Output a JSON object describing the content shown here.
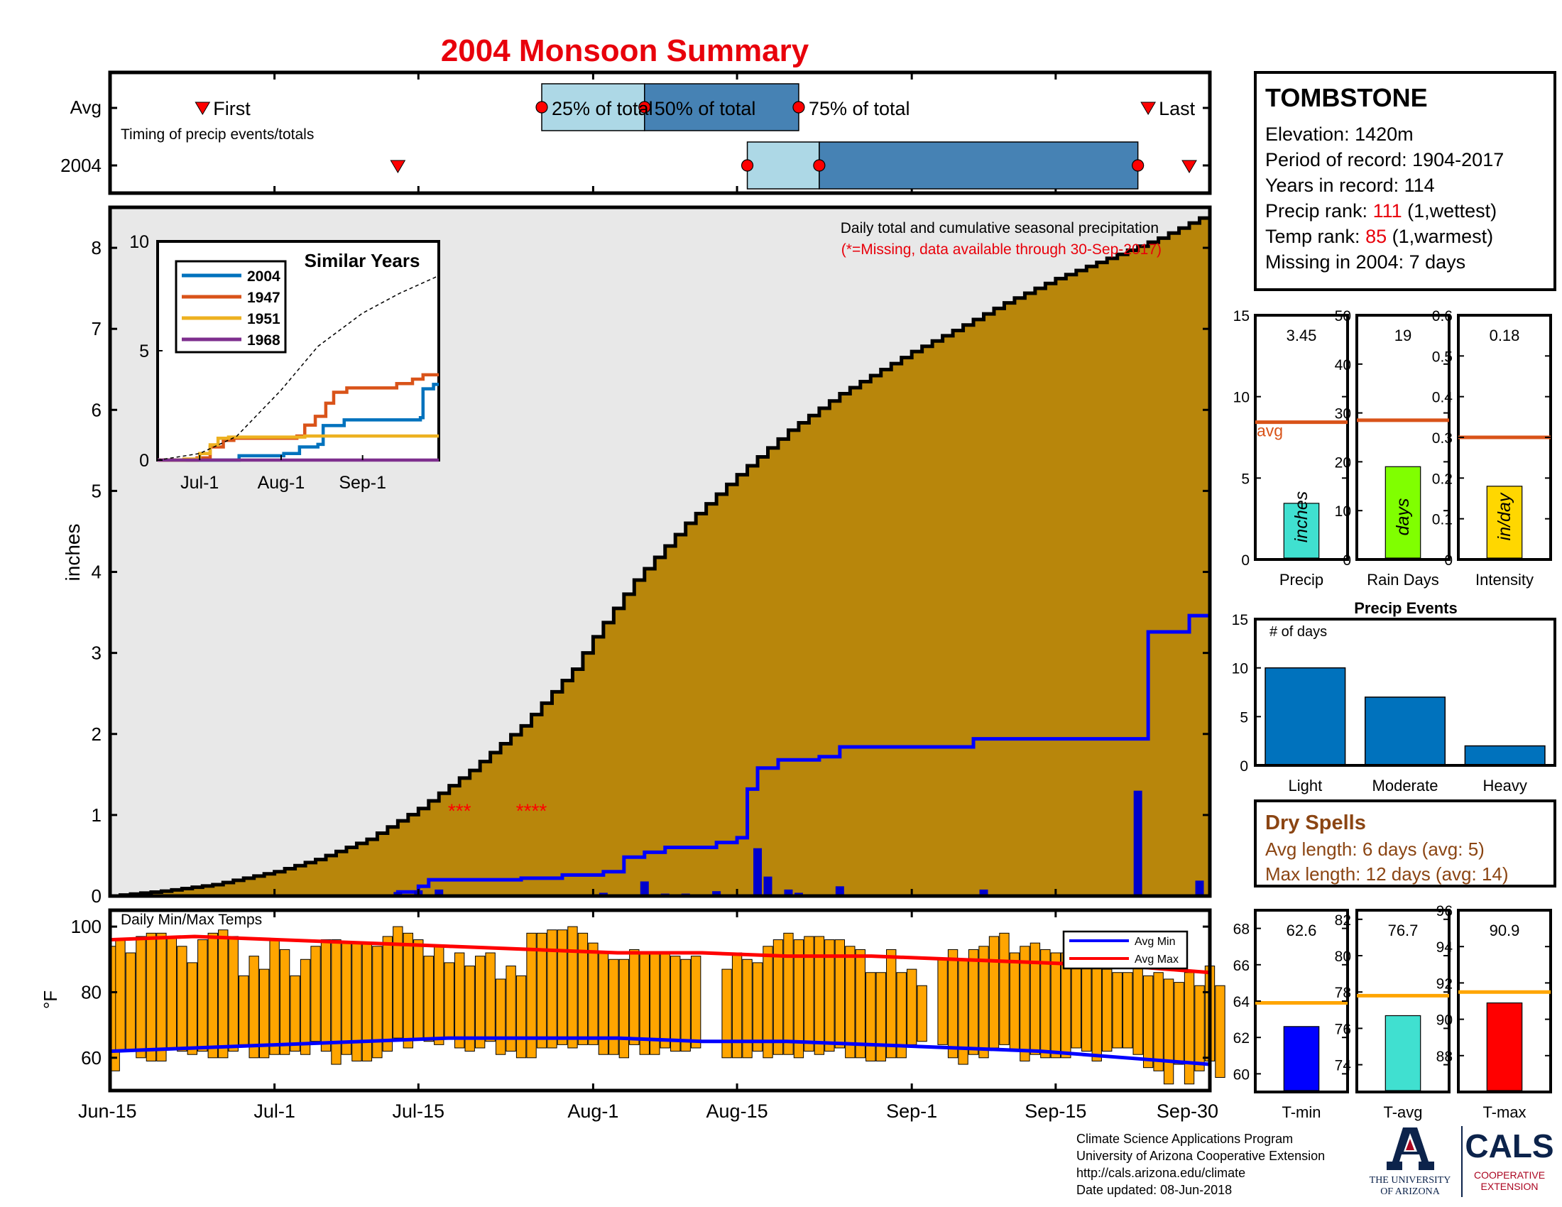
{
  "title": "2004 Monsoon Summary",
  "colors": {
    "title": "#e8000b",
    "cum_fill": "#b8860b",
    "rain_fill": "#e8e8e8",
    "rain_line": "#0000ff",
    "daily_bar": "#0000cc",
    "temp_bar": "#ffa500",
    "avg_min": "#0000ff",
    "avg_max": "#ff0000",
    "q_light": "#add8e6",
    "q_dark": "#4682b4",
    "marker": "#ff0000",
    "avg_line": "#d95319",
    "temp_avg_line": "#ffa500",
    "red_text": "#e8000b",
    "brown_text": "#8b4513",
    "events_bar": "#0072bd"
  },
  "timing": {
    "avg_label": "Avg",
    "year_label": "2004",
    "subtitle": "Timing of precip events/totals",
    "first_label": "First",
    "last_label": "Last",
    "q25_label": "25% of total",
    "q50_label": "50% of total",
    "q75_label": "75% of total",
    "avg": {
      "first": "2004-06-24",
      "q25": "2004-07-27",
      "q50": "2004-08-06",
      "q75": "2004-08-21",
      "last": "2004-09-24"
    },
    "y2004": {
      "first": "2004-07-13",
      "q25": "2004-08-16",
      "q50": "2004-08-23",
      "q75": "2004-09-23",
      "last": "2004-09-28"
    }
  },
  "station": {
    "name": "TOMBSTONE",
    "elevation": "Elevation: 1420m",
    "period": "Period of record: 1904-2017",
    "years": "Years in record: 114",
    "precip_rank_pre": "Precip rank: ",
    "precip_rank_val": "111",
    "precip_rank_post": " (1,wettest)",
    "temp_rank_pre": "Temp rank: ",
    "temp_rank_val": "85",
    "temp_rank_post": " (1,warmest)",
    "missing": "Missing in 2004: 7 days"
  },
  "main": {
    "ylabel": "inches",
    "note_line1": "Daily total and cumulative seasonal precipitation",
    "note_line2": "(*=Missing, data available through 30-Sep-2017)",
    "x_ticks": [
      "Jun-15",
      "Jul-1",
      "Jul-15",
      "Aug-1",
      "Aug-15",
      "Sep-1",
      "Sep-15",
      "Sep-30"
    ],
    "y_ticks": [
      "0",
      "1",
      "2",
      "3",
      "4",
      "5",
      "6",
      "7",
      "8"
    ],
    "missing_marks": [
      {
        "text": "***",
        "date": "2004-07-19"
      },
      {
        "text": "****",
        "date": "2004-07-26"
      }
    ]
  },
  "chart_data": [
    {
      "type": "area",
      "name": "Cumulative seasonal precipitation",
      "x_start": "Jun-15",
      "x_end": "Sep-30",
      "ylim": [
        0,
        8.5
      ],
      "ylabel": "inches",
      "series": [
        {
          "name": "Average cumulative",
          "points": [
            [
              "2004-06-15",
              0
            ],
            [
              "2004-06-20",
              0.06
            ],
            [
              "2004-06-25",
              0.14
            ],
            [
              "2004-07-01",
              0.3
            ],
            [
              "2004-07-05",
              0.45
            ],
            [
              "2004-07-10",
              0.7
            ],
            [
              "2004-07-15",
              1.08
            ],
            [
              "2004-07-20",
              1.55
            ],
            [
              "2004-07-25",
              2.1
            ],
            [
              "2004-07-30",
              2.8
            ],
            [
              "2004-08-01",
              3.2
            ],
            [
              "2004-08-05",
              3.9
            ],
            [
              "2004-08-10",
              4.6
            ],
            [
              "2004-08-15",
              5.2
            ],
            [
              "2004-08-20",
              5.75
            ],
            [
              "2004-08-25",
              6.2
            ],
            [
              "2004-09-01",
              6.72
            ],
            [
              "2004-09-05",
              6.98
            ],
            [
              "2004-09-10",
              7.32
            ],
            [
              "2004-09-15",
              7.62
            ],
            [
              "2004-09-20",
              7.87
            ],
            [
              "2004-09-25",
              8.12
            ],
            [
              "2004-09-30",
              8.43
            ]
          ]
        },
        {
          "name": "2004 cumulative",
          "points": [
            [
              "2004-06-15",
              0
            ],
            [
              "2004-07-12",
              0
            ],
            [
              "2004-07-13",
              0.05
            ],
            [
              "2004-07-15",
              0.12
            ],
            [
              "2004-07-16",
              0.2
            ],
            [
              "2004-07-25",
              0.22
            ],
            [
              "2004-07-29",
              0.26
            ],
            [
              "2004-08-02",
              0.3
            ],
            [
              "2004-08-04",
              0.48
            ],
            [
              "2004-08-06",
              0.54
            ],
            [
              "2004-08-08",
              0.6
            ],
            [
              "2004-08-13",
              0.66
            ],
            [
              "2004-08-15",
              0.72
            ],
            [
              "2004-08-16",
              1.32
            ],
            [
              "2004-08-17",
              1.58
            ],
            [
              "2004-08-19",
              1.68
            ],
            [
              "2004-08-23",
              1.72
            ],
            [
              "2004-08-25",
              1.84
            ],
            [
              "2004-09-07",
              1.94
            ],
            [
              "2004-09-23",
              1.94
            ],
            [
              "2004-09-24",
              3.26
            ],
            [
              "2004-09-28",
              3.46
            ],
            [
              "2004-09-30",
              3.46
            ]
          ]
        }
      ]
    },
    {
      "type": "bar",
      "name": "Daily precipitation 2004",
      "unit": "inches",
      "values": [
        [
          "2004-07-13",
          0.05
        ],
        [
          "2004-07-15",
          0.07
        ],
        [
          "2004-07-17",
          0.08
        ],
        [
          "2004-08-02",
          0.04
        ],
        [
          "2004-08-06",
          0.18
        ],
        [
          "2004-08-08",
          0.03
        ],
        [
          "2004-08-10",
          0.03
        ],
        [
          "2004-08-13",
          0.06
        ],
        [
          "2004-08-17",
          0.59
        ],
        [
          "2004-08-18",
          0.24
        ],
        [
          "2004-08-20",
          0.08
        ],
        [
          "2004-08-21",
          0.04
        ],
        [
          "2004-08-25",
          0.12
        ],
        [
          "2004-09-08",
          0.08
        ],
        [
          "2004-09-23",
          1.3
        ],
        [
          "2004-09-29",
          0.19
        ]
      ]
    },
    {
      "type": "line",
      "name": "Similar Years",
      "x_ticks": [
        "Jul-1",
        "Aug-1",
        "Sep-1"
      ],
      "y_ticks": [
        "0",
        "5",
        "10"
      ],
      "ylim": [
        0,
        10
      ],
      "legend_position": "top-left",
      "series": [
        {
          "name": "2004",
          "color": "#0072bd",
          "points": [
            [
              "2004-06-15",
              0
            ],
            [
              "2004-07-12",
              0
            ],
            [
              "2004-07-16",
              0.2
            ],
            [
              "2004-08-02",
              0.3
            ],
            [
              "2004-08-08",
              0.6
            ],
            [
              "2004-08-15",
              0.72
            ],
            [
              "2004-08-17",
              1.58
            ],
            [
              "2004-08-25",
              1.84
            ],
            [
              "2004-09-23",
              1.94
            ],
            [
              "2004-09-24",
              3.26
            ],
            [
              "2004-09-28",
              3.46
            ],
            [
              "2004-09-30",
              3.46
            ]
          ]
        },
        {
          "name": "1947",
          "color": "#d95319",
          "points": [
            [
              "2004-06-15",
              0
            ],
            [
              "2004-06-30",
              0.1
            ],
            [
              "2004-07-05",
              0.6
            ],
            [
              "2004-07-10",
              0.9
            ],
            [
              "2004-07-14",
              1.0
            ],
            [
              "2004-08-07",
              1.1
            ],
            [
              "2004-08-10",
              1.6
            ],
            [
              "2004-08-14",
              2.0
            ],
            [
              "2004-08-18",
              2.6
            ],
            [
              "2004-08-21",
              3.1
            ],
            [
              "2004-08-26",
              3.3
            ],
            [
              "2004-09-10",
              3.3
            ],
            [
              "2004-09-14",
              3.5
            ],
            [
              "2004-09-20",
              3.7
            ],
            [
              "2004-09-24",
              3.9
            ],
            [
              "2004-09-30",
              3.9
            ]
          ]
        },
        {
          "name": "1951",
          "color": "#edb120",
          "points": [
            [
              "2004-06-15",
              0
            ],
            [
              "2004-06-25",
              0.05
            ],
            [
              "2004-07-01",
              0.3
            ],
            [
              "2004-07-05",
              0.7
            ],
            [
              "2004-07-08",
              1.0
            ],
            [
              "2004-07-12",
              1.05
            ],
            [
              "2004-08-10",
              1.1
            ],
            [
              "2004-09-30",
              1.1
            ]
          ]
        },
        {
          "name": "1968",
          "color": "#7e2f8e",
          "points": [
            [
              "2004-06-15",
              0
            ],
            [
              "2004-09-30",
              0
            ]
          ]
        },
        {
          "name": "Average",
          "color": "#000000",
          "dashed": true,
          "points": [
            [
              "2004-06-15",
              0
            ],
            [
              "2004-07-01",
              0.3
            ],
            [
              "2004-07-15",
              1.08
            ],
            [
              "2004-08-01",
              3.2
            ],
            [
              "2004-08-15",
              5.2
            ],
            [
              "2004-09-01",
              6.72
            ],
            [
              "2004-09-15",
              7.62
            ],
            [
              "2004-09-30",
              8.43
            ]
          ]
        }
      ]
    },
    {
      "type": "bar",
      "name": "Daily Min/Max Temps",
      "ylabel": "°F",
      "ylim": [
        50,
        105
      ],
      "legend": [
        "Avg Min",
        "Avg Max"
      ],
      "legend_position": "top-right",
      "start": "2004-06-15",
      "tmin": [
        56,
        62,
        62,
        60,
        59,
        59,
        63,
        62,
        61,
        62,
        60,
        60,
        62,
        64,
        60,
        60,
        61,
        61,
        62,
        61,
        65,
        62,
        58,
        61,
        59,
        59,
        60,
        62,
        66,
        63,
        66,
        65,
        64,
        66,
        63,
        62,
        63,
        65,
        61,
        62,
        60,
        60,
        63,
        63,
        64,
        63,
        64,
        64,
        61,
        61,
        60,
        64,
        61,
        61,
        63,
        62,
        62,
        63,
        64,
        62,
        60,
        60,
        60,
        62,
        60,
        61,
        61,
        60,
        62,
        61,
        62,
        63,
        60,
        60,
        59,
        59,
        60,
        60,
        64,
        65,
        64,
        64,
        60,
        58,
        61,
        60,
        63,
        64,
        62,
        59,
        61,
        60,
        60,
        60,
        63,
        62,
        59,
        62,
        63,
        63,
        61,
        57,
        56,
        52,
        58,
        52,
        56,
        59,
        54
      ],
      "tmax": [
        94,
        96,
        92,
        97,
        98,
        98,
        97,
        94,
        89,
        96,
        98,
        99,
        97,
        85,
        91,
        87,
        96,
        93,
        85,
        90,
        94,
        96,
        96,
        95,
        95,
        95,
        94,
        97,
        100,
        98,
        96,
        91,
        94,
        89,
        92,
        88,
        91,
        92,
        84,
        88,
        85,
        98,
        98,
        99,
        99,
        100,
        98,
        95,
        92,
        90,
        90,
        93,
        92,
        92,
        92,
        91,
        90,
        91,
        0,
        0,
        87,
        92,
        90,
        89,
        94,
        96,
        98,
        96,
        97,
        97,
        96,
        96,
        94,
        93,
        86,
        86,
        93,
        86,
        87,
        82,
        0,
        90,
        93,
        90,
        93,
        94,
        97,
        98,
        92,
        94,
        95,
        93,
        92,
        92,
        89,
        88,
        88,
        87,
        86,
        86,
        92,
        85,
        86,
        84,
        83,
        86,
        82,
        88,
        82
      ],
      "avg_min": [
        62,
        63,
        64,
        65,
        66,
        66,
        66,
        65,
        65,
        64,
        63,
        62,
        60,
        58
      ],
      "avg_max": [
        96,
        97,
        96,
        95,
        94,
        93,
        92,
        92,
        91,
        91,
        90,
        89,
        88,
        86
      ]
    },
    {
      "type": "bar",
      "name": "Seasonal totals",
      "panels": [
        {
          "label": "Precip",
          "unit": "inches",
          "value": 3.45,
          "avg": 8.43,
          "ylim": [
            0,
            15
          ],
          "ticks": [
            "0",
            "5",
            "10",
            "15"
          ],
          "color": "#40e0d0",
          "value_label": "3.45",
          "avg_label": "avg"
        },
        {
          "label": "Rain Days",
          "unit": "days",
          "value": 19,
          "avg": 28.5,
          "ylim": [
            0,
            50
          ],
          "ticks": [
            "0",
            "10",
            "20",
            "30",
            "40",
            "50"
          ],
          "color": "#80ff00",
          "value_label": "19"
        },
        {
          "label": "Intensity",
          "unit": "in/day",
          "value": 0.18,
          "avg": 0.3,
          "ylim": [
            0,
            0.6
          ],
          "ticks": [
            "0",
            "0.1",
            "0.2",
            "0.3",
            "0.4",
            "0.5",
            "0.6"
          ],
          "color": "#ffd700",
          "value_label": "0.18"
        }
      ]
    },
    {
      "type": "bar",
      "name": "Precip Events",
      "title": "Precip Events",
      "ylabel": "# of days",
      "categories": [
        "Light",
        "Moderate",
        "Heavy"
      ],
      "values": [
        10,
        7,
        2
      ],
      "ylim": [
        0,
        15
      ],
      "ticks": [
        "0",
        "5",
        "10",
        "15"
      ]
    },
    {
      "type": "bar",
      "name": "Seasonal temperatures",
      "panels": [
        {
          "label": "T-min",
          "value": 62.6,
          "avg": 63.9,
          "ylim": [
            59,
            69
          ],
          "ticks": [
            "60",
            "62",
            "64",
            "66",
            "68"
          ],
          "color": "#0000ff",
          "value_label": "62.6"
        },
        {
          "label": "T-avg",
          "value": 76.7,
          "avg": 77.8,
          "ylim": [
            72.5,
            82.5
          ],
          "ticks": [
            "74",
            "76",
            "78",
            "80",
            "82"
          ],
          "color": "#40e0d0",
          "value_label": "76.7"
        },
        {
          "label": "T-max",
          "value": 90.9,
          "avg": 91.5,
          "ylim": [
            86,
            96
          ],
          "ticks": [
            "88",
            "90",
            "92",
            "94",
            "96"
          ],
          "color": "#ff0000",
          "value_label": "90.9"
        }
      ]
    }
  ],
  "temps": {
    "title": "Daily Min/Max Temps",
    "ylabel": "°F",
    "y_ticks": [
      "60",
      "80",
      "100"
    ],
    "legend_min": "Avg Min",
    "legend_max": "Avg Max"
  },
  "inset": {
    "title": "Similar Years"
  },
  "events": {
    "title": "Precip Events",
    "ylabel": "# of days"
  },
  "dry": {
    "title": "Dry Spells",
    "avg": "Avg length: 6 days (avg: 5)",
    "max": "Max length: 12 days (avg: 14)"
  },
  "credits": {
    "line1": "Climate Science Applications Program",
    "line2": "University of Arizona Cooperative Extension",
    "line3": "http://cals.arizona.edu/climate",
    "line4": " Date updated: 08-Jun-2018"
  },
  "logo": {
    "ua_line1": "THE UNIVERSITY",
    "ua_line2": "OF ARIZONA",
    "cals": "CALS",
    "coop1": "COOPERATIVE",
    "coop2": "EXTENSION"
  }
}
